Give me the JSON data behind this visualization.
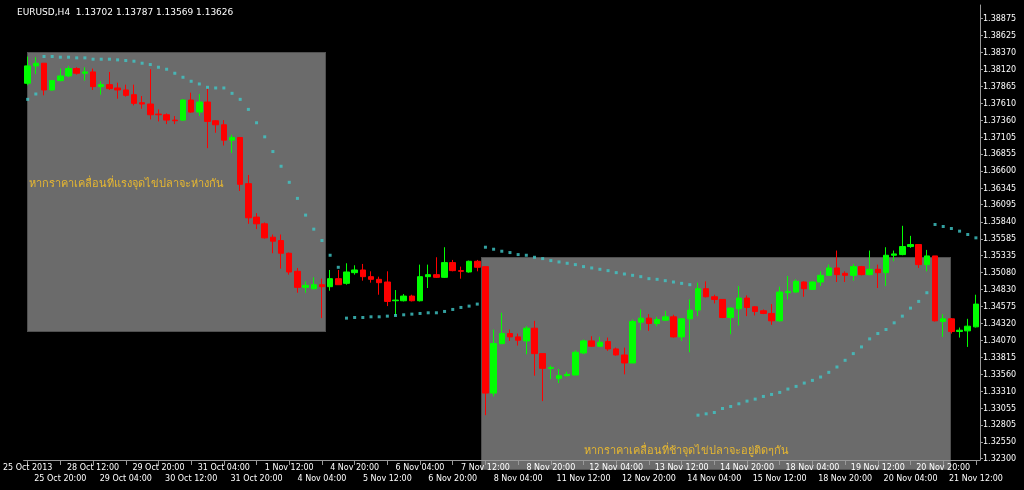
{
  "chart_data": {
    "type": "candlestick",
    "title": "EURUSD,H4  1.13702 1.13787 1.13569 1.13626",
    "categories": [
      "25 Oct 2013",
      null,
      null,
      null,
      "25 Oct 20:00",
      null,
      null,
      null,
      "28 Oct 12:00",
      null,
      null,
      null,
      "29 Oct 04:00",
      null,
      null,
      null,
      "29 Oct 20:00",
      null,
      null,
      null,
      "30 Oct 12:00",
      null,
      null,
      null,
      "31 Oct 04:00",
      null,
      null,
      null,
      "31 Oct 20:00",
      null,
      null,
      null,
      "1 Nov 12:00",
      null,
      null,
      null,
      "4 Nov 04:00",
      null,
      null,
      null,
      "4 Nov 20:00",
      null,
      null,
      null,
      "5 Nov 12:00",
      null,
      null,
      null,
      "6 Nov 04:00",
      null,
      null,
      null,
      "6 Nov 20:00",
      null,
      null,
      null,
      "7 Nov 12:00",
      null,
      null,
      null,
      "8 Nov 04:00",
      null,
      null,
      null,
      "8 Nov 20:00",
      null,
      null,
      null,
      "11 Nov 12:00",
      null,
      null,
      null,
      "12 Nov 04:00",
      null,
      null,
      null,
      "12 Nov 20:00",
      null,
      null,
      null,
      "13 Nov 12:00",
      null,
      null,
      null,
      "14 Nov 04:00",
      null,
      null,
      null,
      "14 Nov 20:00",
      null,
      null,
      null,
      "15 Nov 12:00",
      null,
      null,
      null,
      "18 Nov 04:00",
      null,
      null,
      null,
      "18 Nov 20:00",
      null,
      null,
      null,
      "19 Nov 12:00",
      null,
      null,
      null,
      "20 Nov 04:00",
      null,
      null,
      null,
      "20 Nov 20:00",
      null,
      null,
      null,
      "21 Nov 12:00"
    ],
    "ylim": [
      1.3228,
      1.3908
    ],
    "yticks": [
      1.38875,
      1.38625,
      {
        "value": 1.3837,
        "label": "1.38370"
      },
      {
        "value": 1.3812,
        "label": "1.38120"
      },
      1.37865,
      {
        "value": 1.3761,
        "label": "1.37610"
      },
      {
        "value": 1.3736,
        "label": "1.37360"
      },
      1.37105,
      1.36855,
      {
        "value": 1.366,
        "label": "1.36600"
      },
      1.36345,
      1.36095,
      {
        "value": 1.3584,
        "label": "1.35840"
      },
      1.35585,
      1.35335,
      {
        "value": 1.3508,
        "label": "1.35080"
      },
      {
        "value": 1.3483,
        "label": "1.34830"
      },
      1.34575,
      {
        "value": 1.3432,
        "label": "1.34320"
      },
      {
        "value": 1.3407,
        "label": "1.34070"
      },
      1.33815,
      {
        "value": 1.3356,
        "label": "1.33560"
      },
      {
        "value": 1.3331,
        "label": "1.33310"
      },
      1.33055,
      1.32805,
      {
        "value": 1.3255,
        "label": "1.32550"
      },
      {
        "value": 1.323,
        "label": "1.32300"
      }
    ],
    "grid": false,
    "annotations": [
      "หากราคาเคลื่อนที่แรงจุดไข่ปลาจะห่างกัน",
      "หากราคาเคลื่อนที่ช้าจุดไข่ปลาจะอยู่ติดๆกัน"
    ],
    "series": [
      {
        "colors": [
          "#00ff00",
          "#00ff00",
          "#ff0000",
          "#00ff00",
          "#00ff00",
          "#00ff00",
          "#ff0000",
          "#00ff00",
          "#ff0000",
          "#00ff00",
          "#ff0000",
          "#ff0000",
          "#ff0000",
          "#ff0000",
          "#ff0000",
          "#ff0000",
          "#ff0000",
          "#ff0000",
          "#ff0000",
          "#00ff00",
          "#ff0000",
          "#00ff00",
          "#ff0000",
          "#ff0000",
          "#ff0000",
          "#00ff00",
          "#ff0000",
          "#ff0000",
          "#ff0000",
          "#ff0000",
          "#ff0000",
          "#ff0000",
          "#ff0000",
          "#ff0000",
          "#00ff00",
          "#00ff00",
          "#ff0000",
          "#00ff00",
          "#ff0000",
          "#00ff00",
          "#00ff00",
          "#ff0000",
          "#ff0000",
          "#ff0000",
          "#ff0000",
          "#00ff00",
          "#00ff00",
          "#ff0000",
          "#00ff00",
          "#00ff00",
          "#ff0000",
          "#00ff00",
          "#ff0000",
          "#ff0000",
          "#00ff00",
          "#ff0000",
          "#ff0000",
          "#00ff00",
          "#00ff00",
          "#ff0000",
          "#ff0000",
          "#00ff00",
          "#ff0000",
          "#ff0000",
          "#00ff00",
          "#00ff00",
          "#00ff00",
          "#00ff00",
          "#00ff00",
          "#ff0000",
          "#00ff00",
          "#ff0000",
          "#ff0000",
          "#ff0000",
          "#00ff00",
          "#00ff00",
          "#ff0000",
          "#00ff00",
          "#00ff00",
          "#ff0000",
          "#00ff00",
          "#00ff00",
          "#00ff00",
          "#ff0000",
          "#ff0000",
          "#ff0000",
          "#00ff00",
          "#00ff00",
          "#ff0000",
          "#ff0000",
          "#ff0000",
          "#ff0000",
          "#00ff00",
          "#00ff00",
          "#00ff00",
          "#ff0000",
          "#00ff00",
          "#00ff00",
          "#00ff00",
          "#ff0000",
          "#ff0000",
          "#00ff00",
          "#ff0000",
          "#00ff00",
          "#ff0000",
          "#00ff00",
          "#00ff00",
          "#00ff00",
          "#00ff00",
          "#ff0000",
          "#00ff00",
          "#ff0000",
          "#00ff00",
          "#ff0000",
          "#00ff00",
          "#00ff00",
          "#00ff00"
        ],
        "ohlc": [
          [
            1.3791,
            1.3831,
            1.3788,
            1.3817
          ],
          [
            1.3817,
            1.383,
            1.3805,
            1.3821
          ],
          [
            1.3821,
            1.3821,
            1.3773,
            1.3781
          ],
          [
            1.3781,
            1.3795,
            1.378,
            1.3795
          ],
          [
            1.3795,
            1.3813,
            1.3794,
            1.3802
          ],
          [
            1.3802,
            1.3817,
            1.38,
            1.3813
          ],
          [
            1.3813,
            1.3815,
            1.3804,
            1.3806
          ],
          [
            1.3806,
            1.3815,
            1.3795,
            1.3808
          ],
          [
            1.3808,
            1.3813,
            1.3781,
            1.3786
          ],
          [
            1.3786,
            1.3794,
            1.3774,
            1.3789
          ],
          [
            1.3789,
            1.3808,
            1.3781,
            1.3783
          ],
          [
            1.3784,
            1.3792,
            1.3768,
            1.3781
          ],
          [
            1.3781,
            1.3789,
            1.3771,
            1.3773
          ],
          [
            1.3774,
            1.3789,
            1.3758,
            1.3761
          ],
          [
            1.3762,
            1.3772,
            1.3753,
            1.376
          ],
          [
            1.376,
            1.3812,
            1.3737,
            1.3744
          ],
          [
            1.3745,
            1.3752,
            1.3734,
            1.3744
          ],
          [
            1.3744,
            1.3746,
            1.373,
            1.3736
          ],
          [
            1.3736,
            1.3742,
            1.373,
            1.3735
          ],
          [
            1.3736,
            1.3767,
            1.3735,
            1.3766
          ],
          [
            1.3766,
            1.3777,
            1.3747,
            1.3748
          ],
          [
            1.3748,
            1.3775,
            1.3742,
            1.3763
          ],
          [
            1.3763,
            1.3783,
            1.3694,
            1.3734
          ],
          [
            1.3735,
            1.3736,
            1.3717,
            1.3729
          ],
          [
            1.3729,
            1.3736,
            1.3698,
            1.3706
          ],
          [
            1.3706,
            1.3714,
            1.3687,
            1.371
          ],
          [
            1.371,
            1.371,
            1.363,
            1.364
          ],
          [
            1.3641,
            1.3654,
            1.3581,
            1.359
          ],
          [
            1.3591,
            1.3597,
            1.3573,
            1.3581
          ],
          [
            1.3581,
            1.3583,
            1.3559,
            1.356
          ],
          [
            1.3561,
            1.3565,
            1.3537,
            1.3555
          ],
          [
            1.3556,
            1.3565,
            1.3514,
            1.3537
          ],
          [
            1.3537,
            1.3538,
            1.3505,
            1.3509
          ],
          [
            1.351,
            1.3515,
            1.3478,
            1.3486
          ],
          [
            1.3486,
            1.3495,
            1.3478,
            1.3489
          ],
          [
            1.3484,
            1.3501,
            1.3483,
            1.349
          ],
          [
            1.349,
            1.3499,
            1.344,
            1.3487
          ],
          [
            1.3487,
            1.3512,
            1.3481,
            1.3499
          ],
          [
            1.3499,
            1.3512,
            1.349,
            1.349
          ],
          [
            1.3492,
            1.3522,
            1.349,
            1.3509
          ],
          [
            1.3508,
            1.3519,
            1.3505,
            1.3512
          ],
          [
            1.3512,
            1.3521,
            1.3496,
            1.3502
          ],
          [
            1.3502,
            1.351,
            1.3493,
            1.3498
          ],
          [
            1.3498,
            1.3502,
            1.3475,
            1.3493
          ],
          [
            1.3494,
            1.351,
            1.3458,
            1.3465
          ],
          [
            1.3466,
            1.3482,
            1.3444,
            1.3467
          ],
          [
            1.3466,
            1.3476,
            1.3465,
            1.3473
          ],
          [
            1.3473,
            1.3475,
            1.3465,
            1.3466
          ],
          [
            1.3466,
            1.352,
            1.3465,
            1.3502
          ],
          [
            1.3502,
            1.352,
            1.3485,
            1.3505
          ],
          [
            1.3505,
            1.3531,
            1.35,
            1.3501
          ],
          [
            1.3501,
            1.3546,
            1.35,
            1.3523
          ],
          [
            1.3523,
            1.3527,
            1.351,
            1.3511
          ],
          [
            1.3511,
            1.3517,
            1.3499,
            1.351
          ],
          [
            1.3509,
            1.3526,
            1.3508,
            1.3525
          ],
          [
            1.3525,
            1.3527,
            1.351,
            1.3516
          ],
          [
            1.3517,
            1.3517,
            1.3295,
            1.3328
          ],
          [
            1.3328,
            1.3423,
            1.3323,
            1.3402
          ],
          [
            1.3402,
            1.3448,
            1.3401,
            1.3417
          ],
          [
            1.3417,
            1.3423,
            1.3406,
            1.3412
          ],
          [
            1.3412,
            1.3417,
            1.3399,
            1.3407
          ],
          [
            1.3406,
            1.3428,
            1.3386,
            1.3425
          ],
          [
            1.3425,
            1.3436,
            1.3354,
            1.3387
          ],
          [
            1.3387,
            1.3387,
            1.3316,
            1.3365
          ],
          [
            1.3365,
            1.3369,
            1.3349,
            1.3366
          ],
          [
            1.335,
            1.3364,
            1.3343,
            1.3354
          ],
          [
            1.3354,
            1.336,
            1.3353,
            1.3356
          ],
          [
            1.3355,
            1.3392,
            1.3355,
            1.3389
          ],
          [
            1.3388,
            1.3408,
            1.3386,
            1.3406
          ],
          [
            1.3406,
            1.3413,
            1.3397,
            1.3398
          ],
          [
            1.3398,
            1.3412,
            1.3397,
            1.3404
          ],
          [
            1.3405,
            1.3411,
            1.3391,
            1.3394
          ],
          [
            1.3394,
            1.3396,
            1.3384,
            1.3385
          ],
          [
            1.3385,
            1.3396,
            1.3356,
            1.3373
          ],
          [
            1.3373,
            1.3438,
            1.3373,
            1.3435
          ],
          [
            1.3434,
            1.3453,
            1.3422,
            1.344
          ],
          [
            1.344,
            1.3446,
            1.3421,
            1.3432
          ],
          [
            1.3432,
            1.3442,
            1.3428,
            1.3438
          ],
          [
            1.3437,
            1.3451,
            1.3436,
            1.3442
          ],
          [
            1.3442,
            1.3445,
            1.3411,
            1.3412
          ],
          [
            1.3412,
            1.344,
            1.3406,
            1.3439
          ],
          [
            1.3439,
            1.3468,
            1.3389,
            1.3452
          ],
          [
            1.3452,
            1.3493,
            1.3443,
            1.3484
          ],
          [
            1.3484,
            1.3495,
            1.3471,
            1.3472
          ],
          [
            1.3472,
            1.3475,
            1.3462,
            1.3468
          ],
          [
            1.3468,
            1.3468,
            1.344,
            1.3441
          ],
          [
            1.3441,
            1.3456,
            1.3416,
            1.3455
          ],
          [
            1.3454,
            1.3488,
            1.3429,
            1.347
          ],
          [
            1.347,
            1.3474,
            1.3443,
            1.3456
          ],
          [
            1.3457,
            1.3458,
            1.3444,
            1.345
          ],
          [
            1.3451,
            1.3453,
            1.3446,
            1.3447
          ],
          [
            1.3447,
            1.3461,
            1.343,
            1.3436
          ],
          [
            1.3436,
            1.3487,
            1.3435,
            1.3479
          ],
          [
            1.3478,
            1.3503,
            1.3468,
            1.348
          ],
          [
            1.3479,
            1.3498,
            1.3478,
            1.3495
          ],
          [
            1.3494,
            1.3495,
            1.3472,
            1.3484
          ],
          [
            1.3483,
            1.3495,
            1.3482,
            1.3494
          ],
          [
            1.3494,
            1.351,
            1.3488,
            1.3504
          ],
          [
            1.3504,
            1.352,
            1.3503,
            1.3515
          ],
          [
            1.3515,
            1.3541,
            1.3494,
            1.3505
          ],
          [
            1.3507,
            1.351,
            1.3494,
            1.3504
          ],
          [
            1.3504,
            1.3521,
            1.3496,
            1.3517
          ],
          [
            1.3517,
            1.3518,
            1.3504,
            1.3505
          ],
          [
            1.3505,
            1.3541,
            1.3504,
            1.3513
          ],
          [
            1.3513,
            1.352,
            1.3485,
            1.3508
          ],
          [
            1.3508,
            1.3546,
            1.3488,
            1.3534
          ],
          [
            1.3534,
            1.3541,
            1.3525,
            1.3536
          ],
          [
            1.3535,
            1.3578,
            1.3534,
            1.3547
          ],
          [
            1.3547,
            1.3563,
            1.3545,
            1.355
          ],
          [
            1.355,
            1.355,
            1.3515,
            1.352
          ],
          [
            1.352,
            1.3542,
            1.351,
            1.3533
          ],
          [
            1.3533,
            1.3533,
            1.3435,
            1.3436
          ],
          [
            1.3435,
            1.3446,
            1.3412,
            1.3439
          ],
          [
            1.3439,
            1.344,
            1.3417,
            1.342
          ],
          [
            1.342,
            1.3426,
            1.3411,
            1.3422
          ],
          [
            1.3421,
            1.3439,
            1.3397,
            1.3428
          ],
          [
            1.3427,
            1.3475,
            1.3426,
            1.3461
          ]
        ]
      },
      {
        "type": "scatter",
        "color": "#40c8c8",
        "marker": "square",
        "values": [
          1.3767,
          1.3775,
          1.3831,
          1.3831,
          1.383,
          1.383,
          1.3829,
          1.3829,
          1.3827,
          1.3827,
          1.3827,
          1.3826,
          1.3825,
          1.3824,
          1.3821,
          1.3819,
          1.3815,
          1.3812,
          1.3806,
          1.38,
          1.3794,
          1.379,
          1.3785,
          1.3784,
          1.3784,
          1.3776,
          1.3767,
          1.3752,
          1.3732,
          1.3711,
          1.3689,
          1.3667,
          1.3643,
          1.3619,
          1.3594,
          1.3573,
          1.3556,
          1.3534,
          1.3516,
          1.344,
          1.3441,
          1.3441,
          1.3442,
          1.3442,
          1.3443,
          1.3444,
          1.3445,
          1.3446,
          1.3447,
          1.3448,
          1.3448,
          1.345,
          1.3453,
          1.3456,
          1.3458,
          1.3461,
          1.3546,
          1.3543,
          1.354,
          1.3538,
          1.3535,
          1.3534,
          1.3531,
          1.3529,
          1.3526,
          1.3524,
          1.3522,
          1.352,
          1.3517,
          1.3515,
          1.3513,
          1.3511,
          1.3508,
          1.3506,
          1.3504,
          1.3502,
          1.3499,
          1.3498,
          1.3496,
          1.3494,
          1.3492,
          1.349,
          1.3295,
          1.3297,
          1.3299,
          1.3305,
          1.3308,
          1.3312,
          1.3316,
          1.3319,
          1.3323,
          1.3326,
          1.3329,
          1.3334,
          1.3338,
          1.3343,
          1.3347,
          1.3352,
          1.3359,
          1.3367,
          1.3377,
          1.3387,
          1.3397,
          1.3409,
          1.3417,
          1.3423,
          1.3433,
          1.3443,
          1.3455,
          1.3465,
          1.3478,
          1.358,
          1.3577,
          1.3574,
          1.357,
          1.3565,
          1.356
        ]
      }
    ]
  }
}
